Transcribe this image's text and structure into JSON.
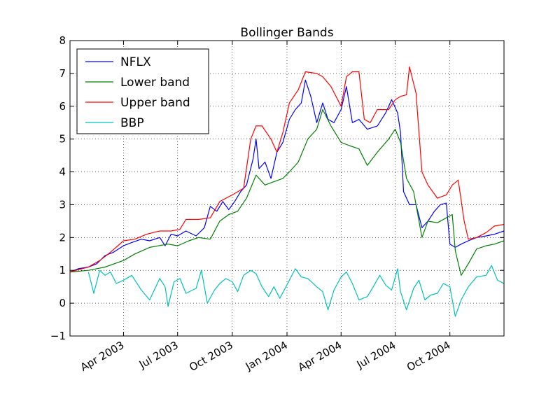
{
  "chart_data": {
    "type": "line",
    "title": "Bollinger Bands",
    "xlabel": "",
    "ylabel": "",
    "ylim": [
      -1,
      8
    ],
    "xlim": [
      "2003-01-01",
      "2004-12-31"
    ],
    "yticks": [
      -1,
      0,
      1,
      2,
      3,
      4,
      5,
      6,
      7,
      8
    ],
    "xticks": [
      {
        "date": "2003-04-01",
        "label": "Apr 2003"
      },
      {
        "date": "2003-07-01",
        "label": "Jul 2003"
      },
      {
        "date": "2003-10-01",
        "label": "Oct 2003"
      },
      {
        "date": "2004-01-01",
        "label": "Jan 2004"
      },
      {
        "date": "2004-04-01",
        "label": "Apr 2004"
      },
      {
        "date": "2004-07-01",
        "label": "Jul 2004"
      },
      {
        "date": "2004-10-01",
        "label": "Oct 2004"
      }
    ],
    "grid": true,
    "legend": "top-left",
    "series": [
      {
        "name": "NFLX",
        "color": "#0000ff",
        "points": [
          [
            "2003-01-01",
            0.95
          ],
          [
            "2003-01-15",
            1.05
          ],
          [
            "2003-02-01",
            1.1
          ],
          [
            "2003-02-15",
            1.2
          ],
          [
            "2003-03-01",
            1.45
          ],
          [
            "2003-03-15",
            1.55
          ],
          [
            "2003-04-01",
            1.75
          ],
          [
            "2003-04-15",
            1.85
          ],
          [
            "2003-05-01",
            1.95
          ],
          [
            "2003-05-15",
            1.9
          ],
          [
            "2003-06-01",
            2.0
          ],
          [
            "2003-06-10",
            1.75
          ],
          [
            "2003-06-20",
            2.1
          ],
          [
            "2003-07-01",
            2.05
          ],
          [
            "2003-07-15",
            2.2
          ],
          [
            "2003-08-01",
            2.05
          ],
          [
            "2003-08-15",
            2.3
          ],
          [
            "2003-08-25",
            2.95
          ],
          [
            "2003-09-05",
            2.8
          ],
          [
            "2003-09-15",
            3.1
          ],
          [
            "2003-09-25",
            2.85
          ],
          [
            "2003-10-05",
            3.1
          ],
          [
            "2003-10-15",
            3.4
          ],
          [
            "2003-10-25",
            3.6
          ],
          [
            "2003-11-05",
            4.4
          ],
          [
            "2003-11-10",
            5.0
          ],
          [
            "2003-11-15",
            4.1
          ],
          [
            "2003-11-25",
            4.3
          ],
          [
            "2003-12-05",
            3.8
          ],
          [
            "2003-12-15",
            4.6
          ],
          [
            "2003-12-25",
            4.9
          ],
          [
            "2004-01-05",
            5.6
          ],
          [
            "2004-01-15",
            5.9
          ],
          [
            "2004-01-25",
            6.1
          ],
          [
            "2004-02-01",
            6.8
          ],
          [
            "2004-02-10",
            6.3
          ],
          [
            "2004-02-20",
            5.5
          ],
          [
            "2004-03-01",
            6.1
          ],
          [
            "2004-03-10",
            5.6
          ],
          [
            "2004-03-20",
            5.5
          ],
          [
            "2004-04-01",
            5.9
          ],
          [
            "2004-04-10",
            6.6
          ],
          [
            "2004-04-20",
            5.5
          ],
          [
            "2004-05-01",
            5.6
          ],
          [
            "2004-05-15",
            5.3
          ],
          [
            "2004-06-01",
            5.4
          ],
          [
            "2004-06-15",
            5.8
          ],
          [
            "2004-06-25",
            6.2
          ],
          [
            "2004-07-05",
            5.8
          ],
          [
            "2004-07-10",
            5.2
          ],
          [
            "2004-07-15",
            3.4
          ],
          [
            "2004-07-25",
            3.0
          ],
          [
            "2004-08-05",
            3.0
          ],
          [
            "2004-08-15",
            2.3
          ],
          [
            "2004-08-25",
            2.5
          ],
          [
            "2004-09-05",
            2.8
          ],
          [
            "2004-09-15",
            3.0
          ],
          [
            "2004-09-25",
            3.05
          ],
          [
            "2004-10-01",
            1.8
          ],
          [
            "2004-10-10",
            1.7
          ],
          [
            "2004-10-20",
            1.8
          ],
          [
            "2004-11-01",
            1.9
          ],
          [
            "2004-11-15",
            2.0
          ],
          [
            "2004-12-01",
            2.05
          ],
          [
            "2004-12-15",
            2.1
          ],
          [
            "2004-12-31",
            2.2
          ]
        ]
      },
      {
        "name": "Lower band",
        "color": "#008000",
        "points": [
          [
            "2003-01-01",
            0.95
          ],
          [
            "2003-02-01",
            1.0
          ],
          [
            "2003-03-01",
            1.1
          ],
          [
            "2003-04-01",
            1.3
          ],
          [
            "2003-04-20",
            1.5
          ],
          [
            "2003-05-15",
            1.7
          ],
          [
            "2003-06-15",
            1.8
          ],
          [
            "2003-07-01",
            1.75
          ],
          [
            "2003-07-20",
            1.9
          ],
          [
            "2003-08-05",
            2.0
          ],
          [
            "2003-08-25",
            1.95
          ],
          [
            "2003-09-10",
            2.5
          ],
          [
            "2003-09-25",
            2.7
          ],
          [
            "2003-10-10",
            2.8
          ],
          [
            "2003-10-25",
            3.2
          ],
          [
            "2003-11-10",
            3.9
          ],
          [
            "2003-11-25",
            3.6
          ],
          [
            "2003-12-10",
            3.7
          ],
          [
            "2003-12-25",
            3.8
          ],
          [
            "2004-01-05",
            4.0
          ],
          [
            "2004-01-20",
            4.3
          ],
          [
            "2004-02-05",
            5.0
          ],
          [
            "2004-02-20",
            5.3
          ],
          [
            "2004-03-01",
            5.9
          ],
          [
            "2004-03-15",
            5.4
          ],
          [
            "2004-04-01",
            4.9
          ],
          [
            "2004-04-15",
            4.8
          ],
          [
            "2004-05-01",
            4.7
          ],
          [
            "2004-05-15",
            4.2
          ],
          [
            "2004-06-01",
            4.6
          ],
          [
            "2004-06-20",
            5.0
          ],
          [
            "2004-07-01",
            5.3
          ],
          [
            "2004-07-10",
            4.9
          ],
          [
            "2004-07-20",
            3.8
          ],
          [
            "2004-08-01",
            3.4
          ],
          [
            "2004-08-15",
            2.0
          ],
          [
            "2004-08-25",
            2.5
          ],
          [
            "2004-09-10",
            2.45
          ],
          [
            "2004-09-25",
            2.6
          ],
          [
            "2004-10-05",
            2.7
          ],
          [
            "2004-10-10",
            1.6
          ],
          [
            "2004-10-20",
            0.85
          ],
          [
            "2004-11-01",
            1.2
          ],
          [
            "2004-11-15",
            1.65
          ],
          [
            "2004-12-01",
            1.75
          ],
          [
            "2004-12-15",
            1.8
          ],
          [
            "2004-12-31",
            1.9
          ]
        ]
      },
      {
        "name": "Upper band",
        "color": "#ff0000",
        "points": [
          [
            "2003-01-01",
            0.95
          ],
          [
            "2003-02-01",
            1.1
          ],
          [
            "2003-02-20",
            1.3
          ],
          [
            "2003-03-10",
            1.55
          ],
          [
            "2003-04-01",
            1.9
          ],
          [
            "2003-04-20",
            1.95
          ],
          [
            "2003-05-10",
            2.1
          ],
          [
            "2003-06-01",
            2.2
          ],
          [
            "2003-06-20",
            2.2
          ],
          [
            "2003-07-05",
            2.25
          ],
          [
            "2003-07-15",
            2.55
          ],
          [
            "2003-08-05",
            2.55
          ],
          [
            "2003-08-25",
            2.6
          ],
          [
            "2003-09-10",
            3.1
          ],
          [
            "2003-10-01",
            3.3
          ],
          [
            "2003-10-20",
            3.5
          ],
          [
            "2003-11-01",
            5.0
          ],
          [
            "2003-11-10",
            5.4
          ],
          [
            "2003-11-20",
            5.4
          ],
          [
            "2003-12-05",
            5.0
          ],
          [
            "2003-12-15",
            4.6
          ],
          [
            "2003-12-25",
            5.2
          ],
          [
            "2004-01-05",
            6.1
          ],
          [
            "2004-01-20",
            6.5
          ],
          [
            "2004-02-01",
            7.05
          ],
          [
            "2004-02-20",
            7.0
          ],
          [
            "2004-03-01",
            6.9
          ],
          [
            "2004-03-15",
            6.6
          ],
          [
            "2004-04-01",
            6.0
          ],
          [
            "2004-04-10",
            6.9
          ],
          [
            "2004-04-20",
            7.05
          ],
          [
            "2004-05-01",
            7.05
          ],
          [
            "2004-05-10",
            5.6
          ],
          [
            "2004-05-20",
            5.5
          ],
          [
            "2004-06-01",
            5.9
          ],
          [
            "2004-06-20",
            5.9
          ],
          [
            "2004-07-01",
            6.2
          ],
          [
            "2004-07-10",
            6.3
          ],
          [
            "2004-07-20",
            6.35
          ],
          [
            "2004-07-25",
            7.2
          ],
          [
            "2004-08-05",
            6.4
          ],
          [
            "2004-08-15",
            4.0
          ],
          [
            "2004-08-25",
            3.6
          ],
          [
            "2004-09-10",
            3.2
          ],
          [
            "2004-09-25",
            3.3
          ],
          [
            "2004-10-05",
            3.6
          ],
          [
            "2004-10-15",
            3.75
          ],
          [
            "2004-10-25",
            2.5
          ],
          [
            "2004-11-01",
            1.95
          ],
          [
            "2004-11-15",
            2.0
          ],
          [
            "2004-12-01",
            2.15
          ],
          [
            "2004-12-15",
            2.35
          ],
          [
            "2004-12-31",
            2.4
          ]
        ]
      },
      {
        "name": "BBP",
        "color": "#00bfbf",
        "points": [
          [
            "2003-02-01",
            0.95
          ],
          [
            "2003-02-10",
            0.3
          ],
          [
            "2003-02-20",
            1.0
          ],
          [
            "2003-03-01",
            0.85
          ],
          [
            "2003-03-10",
            0.95
          ],
          [
            "2003-03-20",
            0.6
          ],
          [
            "2003-04-01",
            0.7
          ],
          [
            "2003-04-15",
            0.85
          ],
          [
            "2003-05-01",
            0.4
          ],
          [
            "2003-05-15",
            0.1
          ],
          [
            "2003-06-01",
            0.75
          ],
          [
            "2003-06-10",
            0.5
          ],
          [
            "2003-06-15",
            -0.1
          ],
          [
            "2003-06-25",
            0.65
          ],
          [
            "2003-07-05",
            0.75
          ],
          [
            "2003-07-15",
            0.3
          ],
          [
            "2003-08-01",
            0.45
          ],
          [
            "2003-08-10",
            1.0
          ],
          [
            "2003-08-20",
            0.0
          ],
          [
            "2003-09-01",
            0.4
          ],
          [
            "2003-09-10",
            0.6
          ],
          [
            "2003-09-20",
            0.75
          ],
          [
            "2003-10-01",
            0.65
          ],
          [
            "2003-10-10",
            0.35
          ],
          [
            "2003-10-20",
            0.85
          ],
          [
            "2003-11-01",
            1.0
          ],
          [
            "2003-11-10",
            0.9
          ],
          [
            "2003-11-20",
            0.5
          ],
          [
            "2003-12-01",
            0.2
          ],
          [
            "2003-12-10",
            0.5
          ],
          [
            "2003-12-20",
            0.15
          ],
          [
            "2004-01-05",
            0.7
          ],
          [
            "2004-01-15",
            1.05
          ],
          [
            "2004-01-25",
            0.8
          ],
          [
            "2004-02-05",
            0.75
          ],
          [
            "2004-02-20",
            0.5
          ],
          [
            "2004-03-01",
            0.35
          ],
          [
            "2004-03-10",
            -0.2
          ],
          [
            "2004-03-20",
            0.4
          ],
          [
            "2004-04-01",
            0.8
          ],
          [
            "2004-04-10",
            0.95
          ],
          [
            "2004-04-20",
            0.6
          ],
          [
            "2004-05-01",
            0.1
          ],
          [
            "2004-05-15",
            0.2
          ],
          [
            "2004-05-25",
            0.5
          ],
          [
            "2004-06-05",
            0.85
          ],
          [
            "2004-06-15",
            0.55
          ],
          [
            "2004-06-25",
            0.4
          ],
          [
            "2004-07-05",
            1.05
          ],
          [
            "2004-07-10",
            0.35
          ],
          [
            "2004-07-20",
            -0.2
          ],
          [
            "2004-08-01",
            0.45
          ],
          [
            "2004-08-10",
            0.7
          ],
          [
            "2004-08-20",
            0.1
          ],
          [
            "2004-08-30",
            0.25
          ],
          [
            "2004-09-10",
            0.3
          ],
          [
            "2004-09-20",
            0.6
          ],
          [
            "2004-10-01",
            0.5
          ],
          [
            "2004-10-10",
            -0.4
          ],
          [
            "2004-10-20",
            0.1
          ],
          [
            "2004-11-01",
            0.5
          ],
          [
            "2004-11-15",
            0.8
          ],
          [
            "2004-12-01",
            0.85
          ],
          [
            "2004-12-10",
            1.15
          ],
          [
            "2004-12-20",
            0.7
          ],
          [
            "2004-12-31",
            0.6
          ]
        ]
      }
    ]
  }
}
